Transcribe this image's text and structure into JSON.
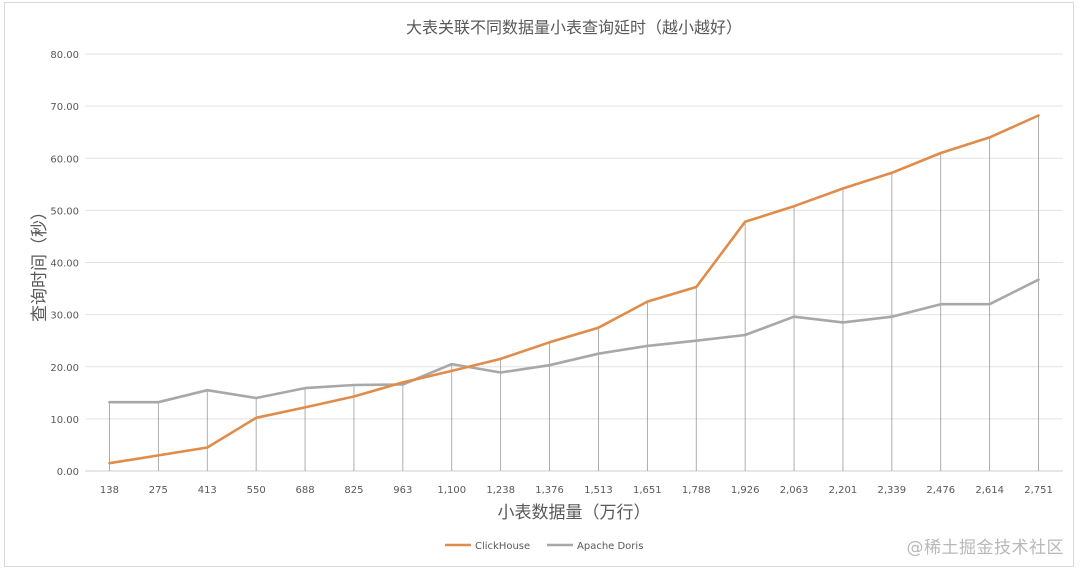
{
  "chart_data": {
    "type": "line",
    "title": "大表关联不同数据量小表查询延时（越小越好）",
    "xlabel": "小表数据量（万行）",
    "ylabel": "查询时间（秒）",
    "ylim": [
      0,
      80
    ],
    "yticks": [
      "0.00",
      "10.00",
      "20.00",
      "30.00",
      "40.00",
      "50.00",
      "60.00",
      "70.00",
      "80.00"
    ],
    "grid": true,
    "legend_position": "bottom",
    "categories": [
      "138",
      "275",
      "413",
      "550",
      "688",
      "825",
      "963",
      "1,100",
      "1,238",
      "1,376",
      "1,513",
      "1,651",
      "1,788",
      "1,926",
      "2,063",
      "2,201",
      "2,339",
      "2,476",
      "2,614",
      "2,751"
    ],
    "series": [
      {
        "name": "ClickHouse",
        "color": "#e08c4a",
        "values": [
          1.5,
          3.0,
          4.5,
          10.2,
          12.2,
          14.3,
          17.0,
          19.2,
          21.5,
          24.7,
          27.5,
          32.5,
          35.3,
          47.8,
          50.8,
          54.2,
          57.2,
          61.0,
          64.0,
          68.2
        ]
      },
      {
        "name": "Apache Doris",
        "color": "#a8a8a8",
        "values": [
          13.2,
          13.2,
          15.5,
          14.0,
          15.9,
          16.5,
          16.6,
          20.5,
          18.9,
          20.3,
          22.5,
          24.0,
          25.0,
          26.1,
          29.6,
          28.5,
          29.6,
          32.0,
          32.0,
          36.7
        ]
      }
    ]
  },
  "watermark": "@稀土掘金技术社区"
}
